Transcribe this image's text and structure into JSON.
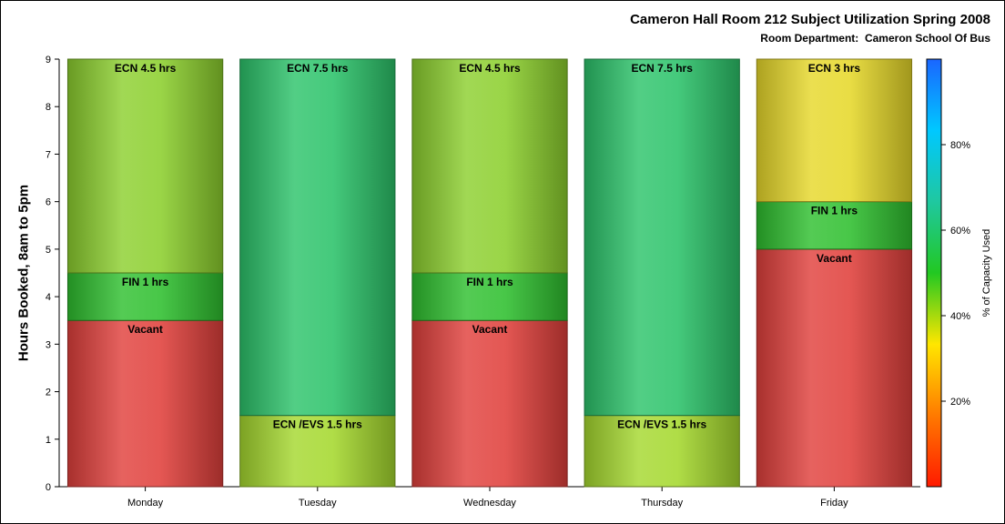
{
  "chart_data": {
    "type": "bar",
    "stacked": true,
    "title": "Cameron Hall Room 212 Subject Utilization Spring 2008",
    "subtitle": "Room Department:  Cameron School Of Bus",
    "ylabel": "Hours Booked, 8am to 5pm",
    "xlabel": "",
    "ylim": [
      0,
      9
    ],
    "yticks": [
      "0",
      "1",
      "2",
      "3",
      "4",
      "5",
      "6",
      "7",
      "8",
      "9"
    ],
    "categories": [
      "Monday",
      "Tuesday",
      "Wednesday",
      "Thursday",
      "Friday"
    ],
    "stacks": [
      {
        "day": "Monday",
        "segments": [
          {
            "label": "Vacant",
            "hours": 3.5,
            "color": "#e0403c"
          },
          {
            "label": "FIN 1 hrs",
            "hours": 1,
            "color": "#2fbf2f"
          },
          {
            "label": "ECN 4.5 hrs",
            "hours": 4.5,
            "color": "#8ccf2e"
          }
        ]
      },
      {
        "day": "Tuesday",
        "segments": [
          {
            "label": "ECN /EVS 1.5 hrs",
            "hours": 1.5,
            "color": "#a5d82e"
          },
          {
            "label": "ECN 7.5 hrs",
            "hours": 7.5,
            "color": "#2cc36a"
          }
        ]
      },
      {
        "day": "Wednesday",
        "segments": [
          {
            "label": "Vacant",
            "hours": 3.5,
            "color": "#e0403c"
          },
          {
            "label": "FIN 1 hrs",
            "hours": 1,
            "color": "#2fbf2f"
          },
          {
            "label": "ECN 4.5 hrs",
            "hours": 4.5,
            "color": "#8ccf2e"
          }
        ]
      },
      {
        "day": "Thursday",
        "segments": [
          {
            "label": "ECN /EVS 1.5 hrs",
            "hours": 1.5,
            "color": "#a5d82e"
          },
          {
            "label": "ECN 7.5 hrs",
            "hours": 7.5,
            "color": "#2cc36a"
          }
        ]
      },
      {
        "day": "Friday",
        "segments": [
          {
            "label": "Vacant",
            "hours": 5,
            "color": "#e0403c"
          },
          {
            "label": "FIN 1 hrs",
            "hours": 1,
            "color": "#2fbf2f"
          },
          {
            "label": "ECN 3 hrs",
            "hours": 3,
            "color": "#e6d82a"
          }
        ]
      }
    ],
    "colorbar": {
      "label": "% of Capacity Used",
      "ticks": [
        "20%",
        "40%",
        "60%",
        "80%"
      ],
      "tick_values": [
        20,
        40,
        60,
        80
      ],
      "range": [
        0,
        100
      ],
      "colors": [
        "#ff1a00",
        "#ff7a00",
        "#ffe600",
        "#22c822",
        "#1fc8a0",
        "#00c8ff",
        "#1a66ff"
      ]
    },
    "grid": false
  }
}
